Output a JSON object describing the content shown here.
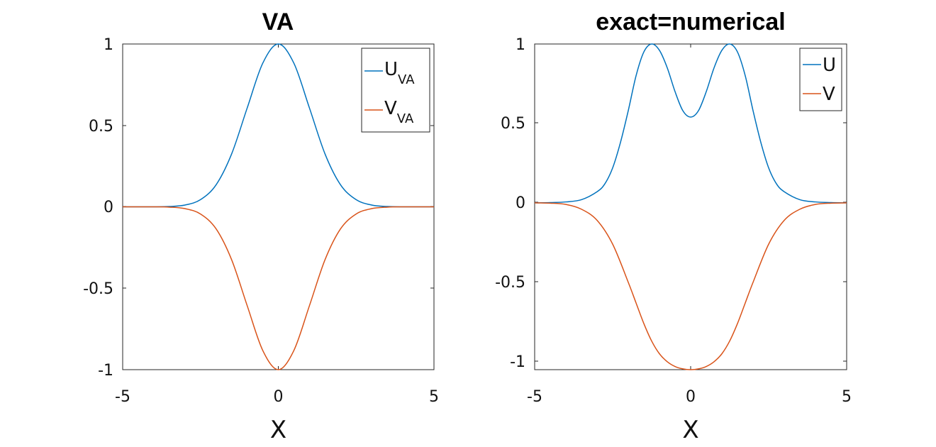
{
  "chart_data": [
    {
      "type": "line",
      "title": "VA",
      "xlabel": "X",
      "ylabel": "",
      "xlim": [
        -5,
        5
      ],
      "ylim": [
        -1,
        1
      ],
      "xticks": [
        "-5",
        "0",
        "5"
      ],
      "yticks": [
        "1",
        "0.5",
        "0",
        "-0.5",
        "-1"
      ],
      "grid": false,
      "legend_position": "top-right",
      "series": [
        {
          "name": "U",
          "name_sub": "VA",
          "color": "#0072BD",
          "x": [
            -5,
            -4.5,
            -4,
            -3.5,
            -3,
            -2.5,
            -2,
            -1.5,
            -1,
            -0.5,
            0,
            0.5,
            1,
            1.5,
            2,
            2.5,
            3,
            3.5,
            4,
            4.5,
            5
          ],
          "y": [
            0,
            0,
            0,
            0.002,
            0.011,
            0.044,
            0.135,
            0.325,
            0.607,
            0.882,
            1,
            0.882,
            0.607,
            0.325,
            0.135,
            0.044,
            0.011,
            0.002,
            0,
            0,
            0
          ]
        },
        {
          "name": "V",
          "name_sub": "VA",
          "color": "#D95319",
          "x": [
            -5,
            -4.5,
            -4,
            -3.5,
            -3,
            -2.5,
            -2,
            -1.5,
            -1,
            -0.5,
            0,
            0.5,
            1,
            1.5,
            2,
            2.5,
            3,
            3.5,
            4,
            4.5,
            5
          ],
          "y": [
            0,
            0,
            0,
            -0.002,
            -0.011,
            -0.044,
            -0.135,
            -0.325,
            -0.607,
            -0.882,
            -1,
            -0.882,
            -0.607,
            -0.325,
            -0.135,
            -0.044,
            -0.011,
            -0.002,
            0,
            0,
            0
          ]
        }
      ]
    },
    {
      "type": "line",
      "title": "exact=numerical",
      "xlabel": "X",
      "ylabel": "",
      "xlim": [
        -5,
        5
      ],
      "ylim": [
        -1.05,
        1
      ],
      "xticks": [
        "-5",
        "0",
        "5"
      ],
      "yticks": [
        "1",
        "0.5",
        "0",
        "-0.5",
        "-1"
      ],
      "grid": false,
      "legend_position": "top-right",
      "series": [
        {
          "name": "U",
          "color": "#0072BD",
          "x": [
            -5,
            -4.5,
            -4,
            -3.5,
            -3,
            -2.75,
            -2.5,
            -2.25,
            -2,
            -1.75,
            -1.5,
            -1.25,
            -1,
            -0.75,
            -0.5,
            -0.25,
            0,
            0.25,
            0.5,
            0.75,
            1,
            1.25,
            1.5,
            1.75,
            2,
            2.25,
            2.5,
            2.75,
            3,
            3.5,
            4,
            4.5,
            5
          ],
          "y": [
            0,
            0.002,
            0.006,
            0.02,
            0.07,
            0.12,
            0.22,
            0.38,
            0.58,
            0.8,
            0.95,
            1,
            0.96,
            0.85,
            0.7,
            0.58,
            0.54,
            0.58,
            0.7,
            0.85,
            0.96,
            1,
            0.95,
            0.8,
            0.58,
            0.38,
            0.22,
            0.12,
            0.07,
            0.02,
            0.006,
            0.002,
            0
          ]
        },
        {
          "name": "V",
          "color": "#D95319",
          "x": [
            -5,
            -4.5,
            -4,
            -3.5,
            -3,
            -2.5,
            -2,
            -1.75,
            -1.5,
            -1.25,
            -1,
            -0.75,
            -0.5,
            -0.25,
            0,
            0.25,
            0.5,
            0.75,
            1,
            1.25,
            1.5,
            1.75,
            2,
            2.5,
            3,
            3.5,
            4,
            4.5,
            5
          ],
          "y": [
            0,
            -0.002,
            -0.01,
            -0.04,
            -0.11,
            -0.26,
            -0.5,
            -0.63,
            -0.76,
            -0.87,
            -0.95,
            -1.0,
            -1.03,
            -1.045,
            -1.05,
            -1.045,
            -1.03,
            -1.0,
            -0.95,
            -0.87,
            -0.76,
            -0.63,
            -0.5,
            -0.26,
            -0.11,
            -0.04,
            -0.01,
            -0.002,
            0
          ]
        }
      ]
    }
  ]
}
